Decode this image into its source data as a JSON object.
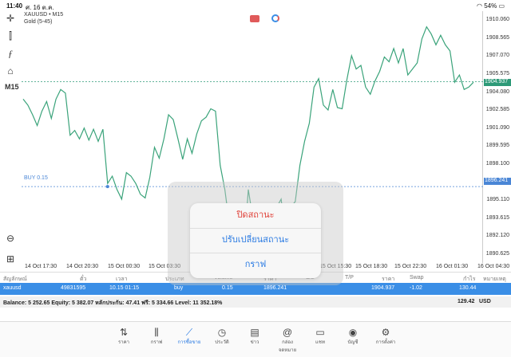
{
  "status": {
    "time": "11:40",
    "date": "ศ. 16 ต.ค.",
    "battery": "54%"
  },
  "chart_header": {
    "symbol": "XAUUSD • M15",
    "description": "Gold (5-45)"
  },
  "timeframe": "M15",
  "buy_line": {
    "label": "BUY 0.15"
  },
  "colors": {
    "line": "#3aa37a",
    "accent": "#2a7ae2",
    "close": "#e0433a",
    "bid_tag": "#2e9a78",
    "buy_tag": "#4a86d6"
  },
  "price_tags": {
    "bid": "1904.937",
    "buy": "1896.241"
  },
  "chart_data": {
    "type": "line",
    "y_ticks": [
      "1910.060",
      "1908.565",
      "1907.070",
      "1905.575",
      "1904.080",
      "1902.585",
      "1901.090",
      "1899.595",
      "1898.100",
      "1896.605",
      "1895.110",
      "1893.615",
      "1892.120",
      "1890.625"
    ],
    "x_ticks": [
      "14 Oct 17:30",
      "14 Oct 20:30",
      "15 Oct 00:30",
      "15 Oct 03:30",
      "15 Oct 15:30",
      "15 Oct 18:30",
      "15 Oct 22:30",
      "16 Oct 01:30",
      "16 Oct 04:30"
    ],
    "ylim": [
      1889.9,
      1910.8
    ],
    "horizontal_lines": [
      1904.937,
      1896.241
    ],
    "values": [
      1903.5,
      1903.0,
      1902.2,
      1901.3,
      1902.5,
      1903.3,
      1901.9,
      1903.5,
      1904.3,
      1904.0,
      1900.5,
      1900.9,
      1900.2,
      1901.1,
      1900.1,
      1901.0,
      1900.0,
      1901.0,
      1896.5,
      1897.1,
      1896.0,
      1895.2,
      1897.4,
      1897.1,
      1896.5,
      1895.6,
      1895.3,
      1897.0,
      1899.5,
      1898.6,
      1900.2,
      1902.2,
      1901.8,
      1900.2,
      1898.5,
      1900.2,
      1899.0,
      1900.6,
      1901.7,
      1902.0,
      1902.7,
      1902.5,
      1898.0,
      1896.0,
      1893.0,
      1891.5,
      1893.0,
      1890.5,
      1896.0,
      1893.5,
      1891.5,
      1894.0,
      1890.2,
      1891.8,
      1894.5,
      1895.2,
      1892.0,
      1894.5,
      1895.0,
      1898.0,
      1900.0,
      1901.5,
      1904.5,
      1905.2,
      1903.0,
      1902.6,
      1904.3,
      1902.8,
      1902.7,
      1905.1,
      1907.1,
      1906.0,
      1906.3,
      1904.5,
      1903.9,
      1905.0,
      1905.8,
      1907.0,
      1906.6,
      1907.7,
      1906.5,
      1907.7,
      1905.5,
      1906.0,
      1906.5,
      1908.5,
      1909.5,
      1908.9,
      1908.0,
      1908.8,
      1908.0,
      1907.5,
      1904.9,
      1905.5,
      1904.3,
      1904.5,
      1904.9
    ]
  },
  "table": {
    "headers": [
      "สัญลักษณ์",
      "ตั๋ว",
      "เวลา",
      "ประเภท",
      "Volume",
      "ราคา",
      "S/L",
      "T/P",
      "ราคา",
      "Swap",
      "กำไร",
      "หมายเหตุ"
    ],
    "row": {
      "symbol": "xauusd",
      "ticket": "49831595",
      "time": "10.15 01:15",
      "type": "buy",
      "volume": "0.15",
      "price": "1896.241",
      "current": "1904.937",
      "swap": "-1.02",
      "profit": "130.44"
    }
  },
  "balance": {
    "text": "Balance: 5 252.65 Equity: 5 382.07 หลักประกัน: 47.41 ฟรี: 5 334.66 Level: 11 352.18%",
    "total": "129.42",
    "currency": "USD"
  },
  "menu": {
    "close": "ปิดสถานะ",
    "modify": "ปรับเปลี่ยนสถานะ",
    "chart": "กราฟ"
  },
  "tabs": [
    {
      "label": "ราคา",
      "icon": "quotes-icon"
    },
    {
      "label": "กราฟ",
      "icon": "chart-icon"
    },
    {
      "label": "การซื้อขาย",
      "icon": "trade-icon"
    },
    {
      "label": "ประวัติ",
      "icon": "history-icon"
    },
    {
      "label": "ข่าว",
      "icon": "news-icon"
    },
    {
      "label": "กล่องจดหมาย",
      "icon": "mailbox-icon"
    },
    {
      "label": "แชท",
      "icon": "chat-icon"
    },
    {
      "label": "บัญชี",
      "icon": "account-icon"
    },
    {
      "label": "การตั้งค่า",
      "icon": "settings-icon"
    }
  ]
}
